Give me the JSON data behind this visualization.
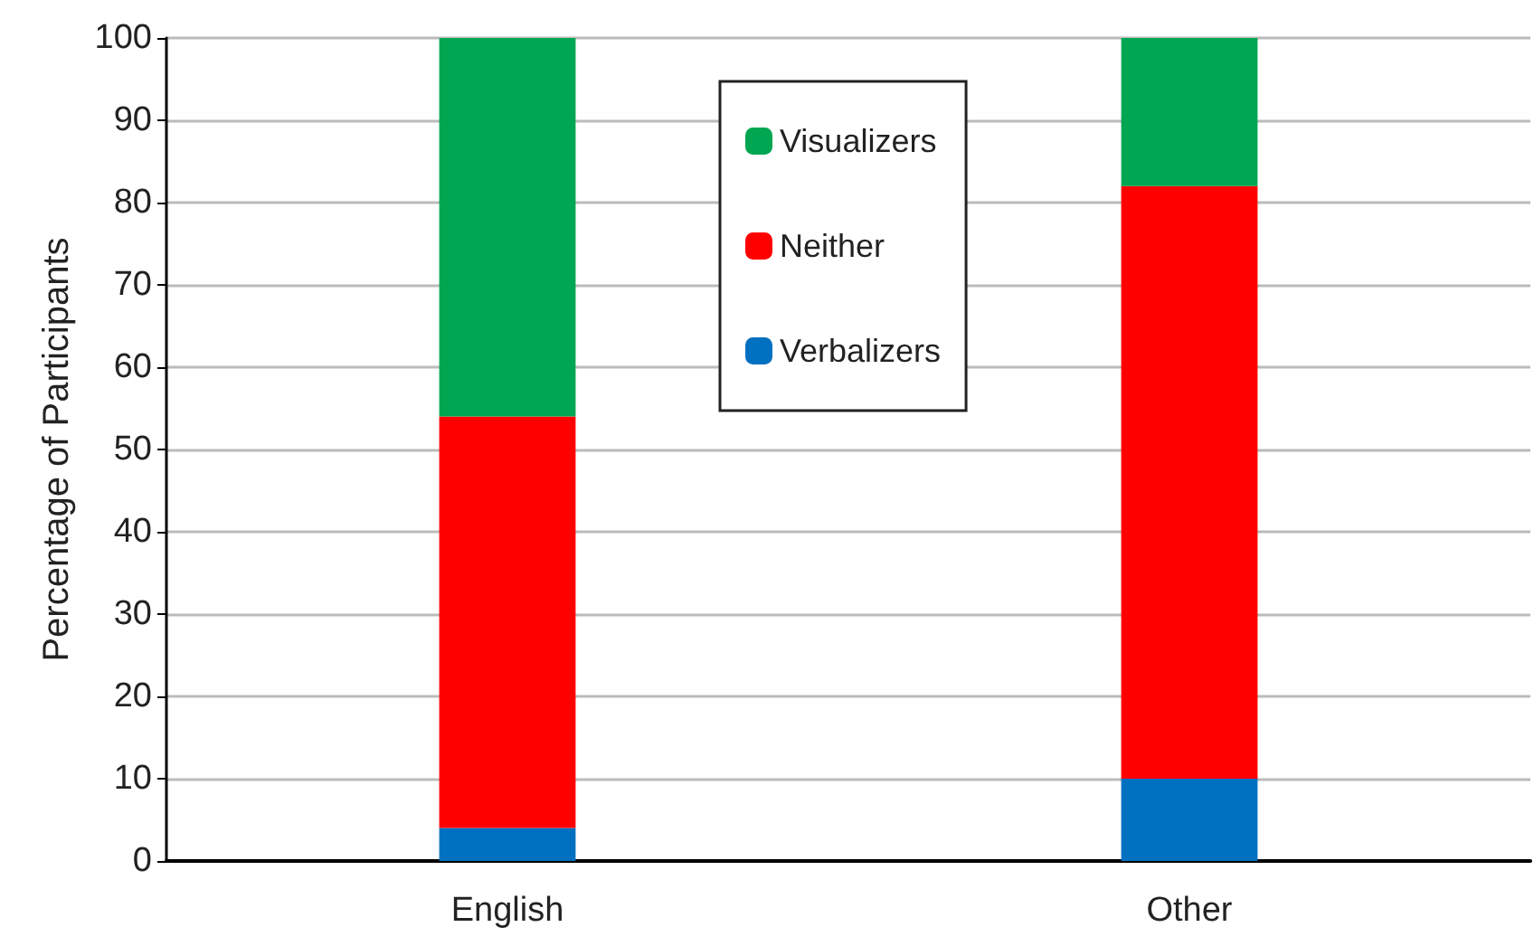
{
  "chart_data": {
    "type": "bar",
    "ylabel": "Percentage of Participants",
    "categories": [
      "English",
      "Other"
    ],
    "stacked": true,
    "series": [
      {
        "name": "Verbalizers",
        "color": "#0070c0",
        "values": [
          4,
          10
        ]
      },
      {
        "name": "Neither",
        "color": "#ff0000",
        "values": [
          50,
          72
        ]
      },
      {
        "name": "Visualizers",
        "color": "#00a651",
        "values": [
          46,
          18
        ]
      }
    ],
    "ylim": [
      0,
      100
    ],
    "yticks": [
      0,
      10,
      20,
      30,
      40,
      50,
      60,
      70,
      80,
      90,
      100
    ],
    "grid": "y",
    "legend": "top center"
  }
}
